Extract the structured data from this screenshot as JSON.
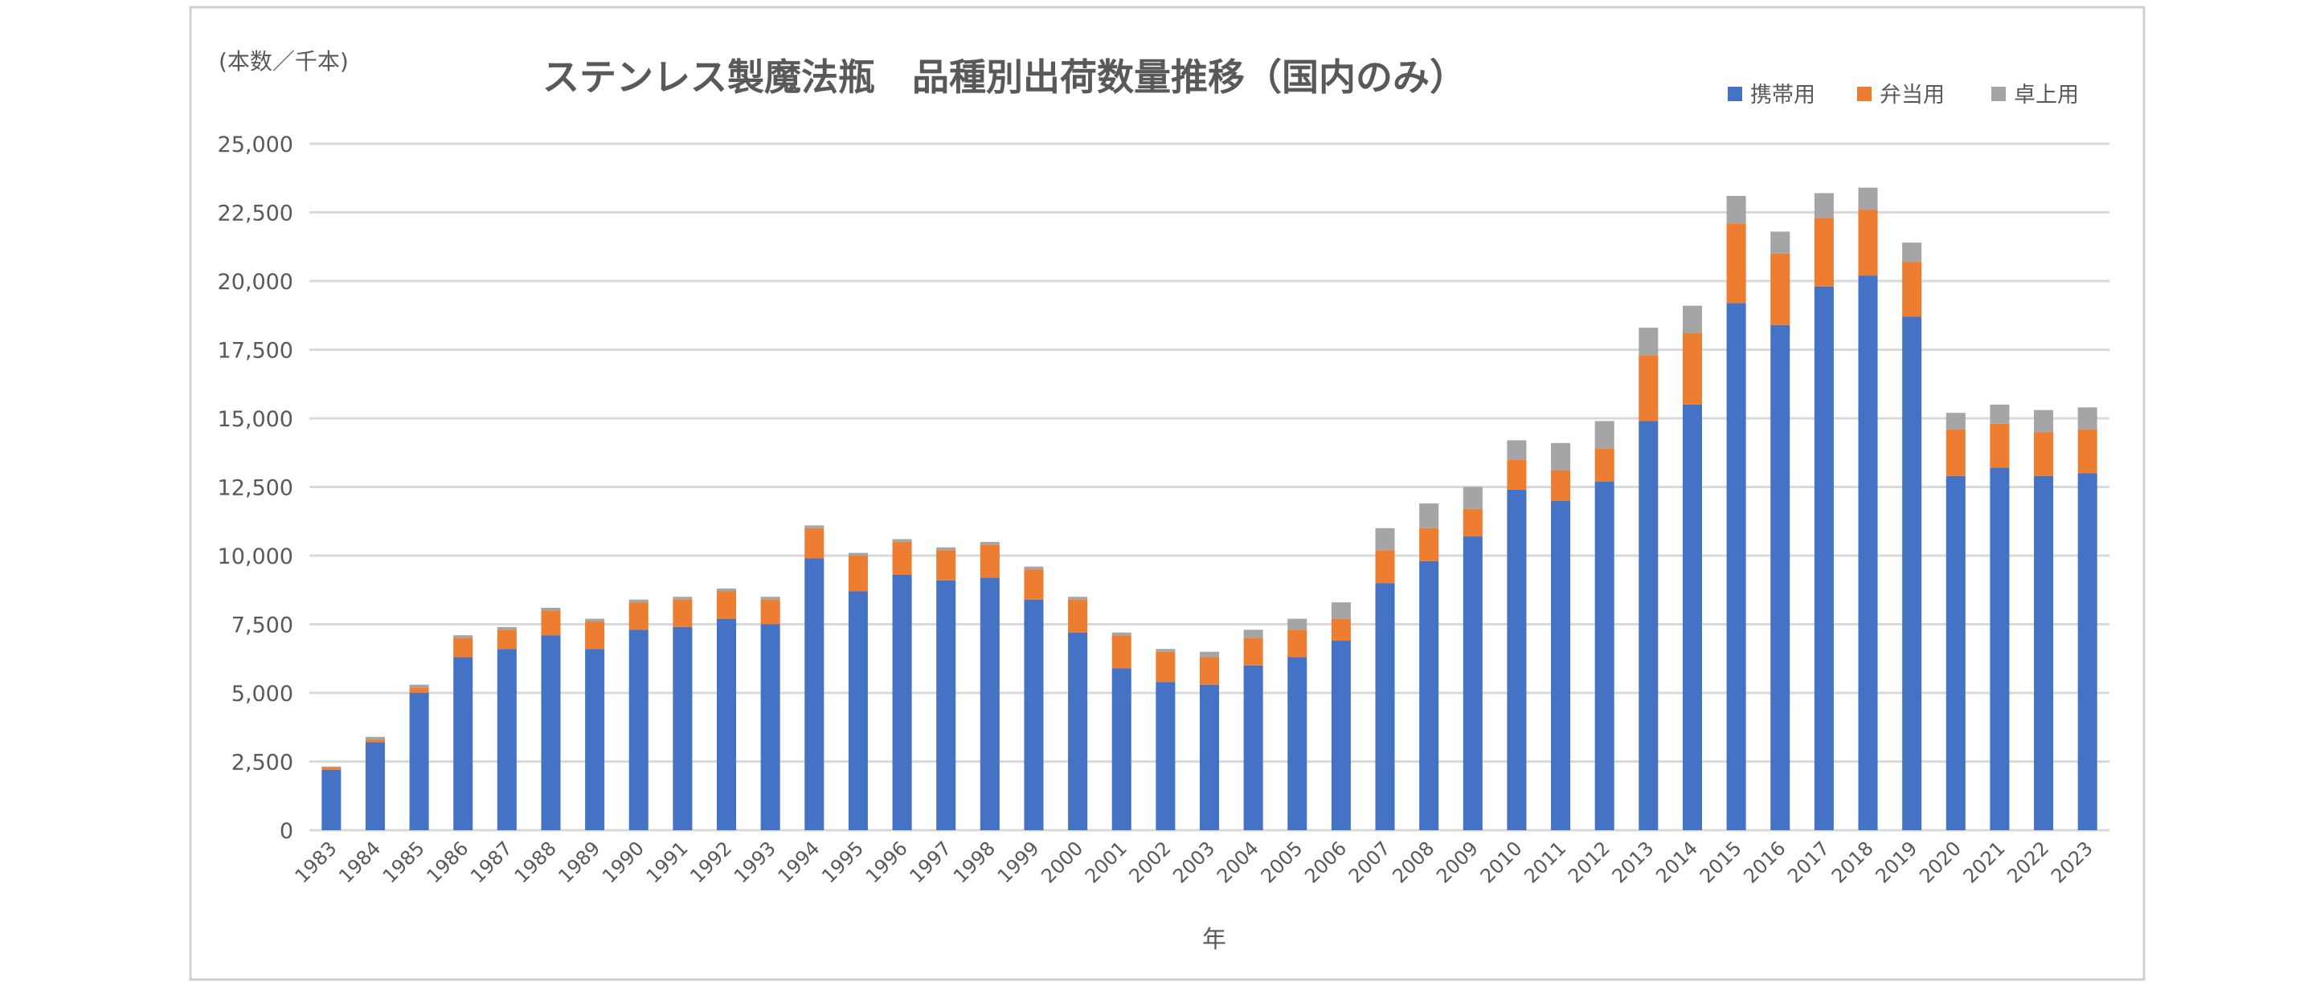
{
  "chart_data": {
    "type": "bar",
    "stacked": true,
    "title": "ステンレス製魔法瓶　品種別出荷数量推移（国内のみ）",
    "ylabel": "(本数／千本)",
    "xlabel": "年",
    "ylim": [
      0,
      25000
    ],
    "yticks": [
      "0",
      "2,500",
      "5,000",
      "7,500",
      "10,000",
      "12,500",
      "15,000",
      "17,500",
      "20,000",
      "22,500",
      "25,000"
    ],
    "ytick_values": [
      0,
      2500,
      5000,
      7500,
      10000,
      12500,
      15000,
      17500,
      20000,
      22500,
      25000
    ],
    "grid": true,
    "legend_position": "top-right",
    "categories": [
      "1983",
      "1984",
      "1985",
      "1986",
      "1987",
      "1988",
      "1989",
      "1990",
      "1991",
      "1992",
      "1993",
      "1994",
      "1995",
      "1996",
      "1997",
      "1998",
      "1999",
      "2000",
      "2001",
      "2002",
      "2003",
      "2004",
      "2005",
      "2006",
      "2007",
      "2008",
      "2009",
      "2010",
      "2011",
      "2012",
      "2013",
      "2014",
      "2015",
      "2016",
      "2017",
      "2018",
      "2019",
      "2020",
      "2021",
      "2022",
      "2023"
    ],
    "series": [
      {
        "name": "携帯用",
        "color": "#4472C4",
        "values": [
          2200,
          3200,
          5000,
          6300,
          6600,
          7100,
          6600,
          7300,
          7400,
          7700,
          7500,
          9900,
          8700,
          9300,
          9100,
          9200,
          8400,
          7200,
          5900,
          5400,
          5300,
          6000,
          6300,
          6900,
          9000,
          9800,
          10700,
          12400,
          12000,
          12700,
          14900,
          15500,
          19200,
          18400,
          19800,
          20200,
          18700,
          12900,
          13200,
          12900,
          13000
        ]
      },
      {
        "name": "弁当用",
        "color": "#ED7D31",
        "values": [
          100,
          100,
          200,
          700,
          700,
          900,
          1000,
          1000,
          1000,
          1000,
          900,
          1100,
          1300,
          1200,
          1100,
          1200,
          1100,
          1200,
          1200,
          1100,
          1000,
          1000,
          1000,
          800,
          1200,
          1200,
          1000,
          1100,
          1100,
          1200,
          2400,
          2600,
          2900,
          2600,
          2500,
          2400,
          2000,
          1700,
          1600,
          1600,
          1600
        ]
      },
      {
        "name": "卓上用",
        "color": "#A5A5A5",
        "values": [
          20,
          100,
          100,
          100,
          100,
          100,
          100,
          100,
          100,
          100,
          100,
          100,
          100,
          100,
          100,
          100,
          100,
          100,
          100,
          100,
          200,
          300,
          400,
          600,
          800,
          900,
          800,
          700,
          1000,
          1000,
          1000,
          1000,
          1000,
          800,
          900,
          800,
          700,
          600,
          700,
          800,
          800
        ]
      }
    ]
  }
}
